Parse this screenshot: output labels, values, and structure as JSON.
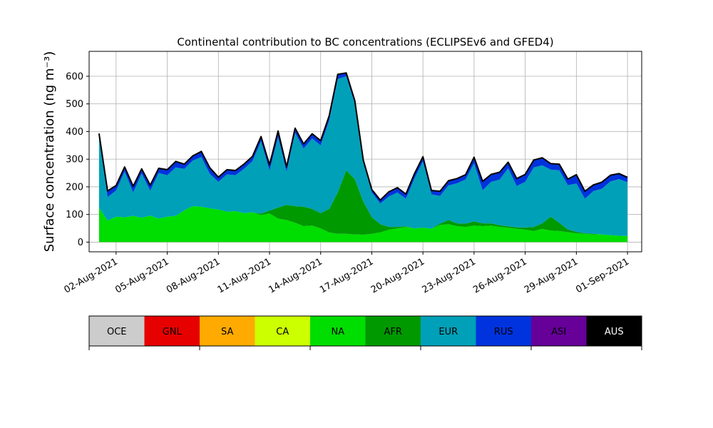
{
  "chart_data": {
    "type": "area",
    "title": "Continental contribution to BC concentrations (ECLIPSEv6 and GFED4)",
    "ylabel": "Surface concentration (ng m⁻³)",
    "xlabel": "",
    "ylim": [
      -35,
      690
    ],
    "yticks": [
      0,
      100,
      200,
      300,
      400,
      500,
      600
    ],
    "xlim": [
      "2021-07-31T10:00",
      "2021-09-01T20:00"
    ],
    "xticks": [
      "02-Aug-2021",
      "05-Aug-2021",
      "08-Aug-2021",
      "11-Aug-2021",
      "14-Aug-2021",
      "17-Aug-2021",
      "20-Aug-2021",
      "23-Aug-2021",
      "26-Aug-2021",
      "29-Aug-2021",
      "01-Sep-2021"
    ],
    "xtick_dates": [
      "2021-08-02",
      "2021-08-05",
      "2021-08-08",
      "2021-08-11",
      "2021-08-14",
      "2021-08-17",
      "2021-08-20",
      "2021-08-23",
      "2021-08-26",
      "2021-08-29",
      "2021-09-01"
    ],
    "grid": true,
    "stacked": true,
    "legend": {
      "placement": "bottom colorbar",
      "labels": [
        "OCE",
        "GNL",
        "SA",
        "CA",
        "NA",
        "AFR",
        "EUR",
        "RUS",
        "ASI",
        "AUS"
      ],
      "colors": [
        "#cccccc",
        "#e60000",
        "#ffaa00",
        "#ccff00",
        "#00dd00",
        "#009900",
        "#00a0b8",
        "#0033dd",
        "#660099",
        "#000000"
      ],
      "text_colors": [
        "#000000",
        "#000000",
        "#000000",
        "#000000",
        "#000000",
        "#000000",
        "#000000",
        "#000000",
        "#000000",
        "#ffffff"
      ]
    },
    "x": [
      "2021-08-01T00:00",
      "2021-08-01T12:00",
      "2021-08-02T00:00",
      "2021-08-02T12:00",
      "2021-08-03T00:00",
      "2021-08-03T12:00",
      "2021-08-04T00:00",
      "2021-08-04T12:00",
      "2021-08-05T00:00",
      "2021-08-05T12:00",
      "2021-08-06T00:00",
      "2021-08-06T12:00",
      "2021-08-07T00:00",
      "2021-08-07T12:00",
      "2021-08-08T00:00",
      "2021-08-08T12:00",
      "2021-08-09T00:00",
      "2021-08-09T12:00",
      "2021-08-10T00:00",
      "2021-08-10T12:00",
      "2021-08-11T00:00",
      "2021-08-11T12:00",
      "2021-08-12T00:00",
      "2021-08-12T12:00",
      "2021-08-13T00:00",
      "2021-08-13T12:00",
      "2021-08-14T00:00",
      "2021-08-14T12:00",
      "2021-08-15T00:00",
      "2021-08-15T12:00",
      "2021-08-16T00:00",
      "2021-08-16T12:00",
      "2021-08-17T00:00",
      "2021-08-17T12:00",
      "2021-08-18T00:00",
      "2021-08-18T12:00",
      "2021-08-19T00:00",
      "2021-08-19T12:00",
      "2021-08-20T00:00",
      "2021-08-20T12:00",
      "2021-08-21T00:00",
      "2021-08-21T12:00",
      "2021-08-22T00:00",
      "2021-08-22T12:00",
      "2021-08-23T00:00",
      "2021-08-23T12:00",
      "2021-08-24T00:00",
      "2021-08-24T12:00",
      "2021-08-25T00:00",
      "2021-08-25T12:00",
      "2021-08-26T00:00",
      "2021-08-26T12:00",
      "2021-08-27T00:00",
      "2021-08-27T12:00",
      "2021-08-28T00:00",
      "2021-08-28T12:00",
      "2021-08-29T00:00",
      "2021-08-29T12:00",
      "2021-08-30T00:00",
      "2021-08-30T12:00",
      "2021-08-31T00:00",
      "2021-08-31T12:00",
      "2021-09-01T00:00"
    ],
    "series": [
      {
        "name": "OCE",
        "values": [
          0,
          0,
          0,
          0,
          0,
          0,
          0,
          0,
          0,
          0,
          0,
          0,
          0,
          0,
          0,
          0,
          0,
          0,
          0,
          0,
          0,
          0,
          0,
          0,
          0,
          0,
          0,
          0,
          0,
          0,
          0,
          0,
          0,
          0,
          0,
          0,
          0,
          0,
          0,
          0,
          0,
          0,
          0,
          0,
          0,
          0,
          0,
          0,
          0,
          0,
          0,
          0,
          0,
          0,
          0,
          0,
          0,
          0,
          0,
          0,
          0,
          0,
          0
        ]
      },
      {
        "name": "GNL",
        "values": [
          0,
          0,
          0,
          0,
          0,
          0,
          0,
          0,
          0,
          0,
          0,
          0,
          0,
          0,
          0,
          0,
          0,
          0,
          0,
          0,
          0,
          0,
          0,
          0,
          0,
          0,
          0,
          0,
          0,
          0,
          0,
          0,
          0,
          0,
          0,
          0,
          0,
          0,
          0,
          0,
          0,
          0,
          0,
          0,
          0,
          0,
          0,
          0,
          0,
          0,
          0,
          0,
          0,
          0,
          0,
          0,
          0,
          0,
          0,
          0,
          0,
          0,
          0
        ]
      },
      {
        "name": "SA",
        "values": [
          0,
          0,
          0,
          0,
          0,
          0,
          0,
          0,
          0,
          0,
          0,
          0,
          0,
          0,
          0,
          0,
          0,
          0,
          0,
          0,
          0,
          0,
          0,
          0,
          0,
          0,
          0,
          0,
          0,
          0,
          0,
          0,
          0,
          0,
          0,
          0,
          0,
          0,
          0,
          0,
          0,
          0,
          0,
          0,
          0,
          0,
          0,
          0,
          0,
          0,
          0,
          0,
          0,
          0,
          0,
          0,
          0,
          0,
          0,
          0,
          0,
          0,
          0
        ]
      },
      {
        "name": "CA",
        "values": [
          0,
          0,
          0,
          0,
          0,
          0,
          0,
          0,
          0,
          0,
          0,
          0,
          0,
          0,
          0,
          0,
          0,
          0,
          0,
          0,
          0,
          0,
          0,
          0,
          0,
          0,
          0,
          0,
          0,
          0,
          0,
          0,
          0,
          0,
          0,
          0,
          0,
          0,
          0,
          0,
          0,
          0,
          0,
          0,
          0,
          0,
          0,
          0,
          0,
          0,
          0,
          0,
          0,
          0,
          0,
          0,
          0,
          0,
          0,
          0,
          0,
          0,
          0
        ]
      },
      {
        "name": "NA",
        "values": [
          125,
          78,
          92,
          90,
          95,
          88,
          96,
          85,
          92,
          95,
          115,
          130,
          128,
          122,
          118,
          110,
          112,
          105,
          108,
          98,
          104,
          85,
          80,
          70,
          58,
          60,
          50,
          35,
          30,
          30,
          28,
          27,
          30,
          35,
          45,
          50,
          55,
          50,
          52,
          48,
          62,
          65,
          58,
          55,
          60,
          58,
          60,
          55,
          52,
          48,
          45,
          40,
          48,
          42,
          40,
          36,
          32,
          30,
          28,
          28,
          25,
          23,
          22
        ]
      },
      {
        "name": "AFR",
        "values": [
          0,
          0,
          0,
          0,
          0,
          0,
          0,
          0,
          0,
          0,
          0,
          0,
          0,
          0,
          0,
          0,
          0,
          0,
          0,
          5,
          10,
          40,
          55,
          60,
          70,
          60,
          55,
          85,
          150,
          230,
          200,
          120,
          60,
          30,
          10,
          5,
          2,
          0,
          0,
          0,
          5,
          15,
          10,
          12,
          15,
          10,
          8,
          6,
          5,
          5,
          8,
          15,
          20,
          50,
          30,
          10,
          5,
          2,
          2,
          0,
          0,
          0,
          0
        ]
      },
      {
        "name": "EUR",
        "values": [
          255,
          85,
          95,
          165,
          85,
          160,
          90,
          165,
          150,
          175,
          150,
          165,
          180,
          125,
          100,
          135,
          130,
          160,
          185,
          262,
          145,
          255,
          120,
          265,
          210,
          255,
          245,
          320,
          410,
          340,
          272,
          140,
          90,
          75,
          110,
          125,
          100,
          180,
          240,
          125,
          100,
          125,
          145,
          160,
          210,
          120,
          150,
          165,
          210,
          150,
          165,
          215,
          210,
          170,
          190,
          160,
          175,
          125,
          155,
          165,
          195,
          205,
          195
        ]
      },
      {
        "name": "RUS",
        "values": [
          10,
          20,
          15,
          15,
          20,
          15,
          18,
          15,
          18,
          20,
          15,
          15,
          18,
          20,
          15,
          15,
          15,
          15,
          15,
          15,
          18,
          20,
          15,
          15,
          15,
          15,
          15,
          15,
          15,
          10,
          10,
          8,
          8,
          10,
          15,
          15,
          15,
          15,
          15,
          12,
          15,
          15,
          15,
          15,
          20,
          30,
          25,
          25,
          20,
          25,
          25,
          25,
          25,
          20,
          20,
          20,
          30,
          25,
          20,
          22,
          20,
          18,
          15
        ]
      },
      {
        "name": "ASI",
        "values": [
          0,
          0,
          0,
          0,
          0,
          0,
          0,
          0,
          0,
          0,
          0,
          0,
          0,
          0,
          0,
          0,
          0,
          0,
          0,
          0,
          0,
          0,
          0,
          0,
          0,
          0,
          0,
          0,
          0,
          0,
          0,
          0,
          0,
          0,
          0,
          0,
          0,
          0,
          0,
          0,
          0,
          0,
          0,
          0,
          0,
          0,
          0,
          0,
          0,
          0,
          0,
          0,
          0,
          0,
          0,
          0,
          0,
          0,
          0,
          0,
          0,
          0,
          0
        ]
      },
      {
        "name": "AUS",
        "values": [
          3,
          2,
          3,
          2,
          2,
          2,
          2,
          2,
          2,
          2,
          2,
          2,
          2,
          2,
          2,
          2,
          2,
          2,
          2,
          2,
          2,
          2,
          2,
          2,
          2,
          2,
          2,
          2,
          2,
          2,
          2,
          2,
          2,
          2,
          2,
          2,
          2,
          2,
          2,
          2,
          2,
          2,
          2,
          2,
          2,
          2,
          2,
          2,
          2,
          2,
          2,
          2,
          2,
          2,
          2,
          2,
          2,
          2,
          2,
          2,
          2,
          2,
          2
        ]
      }
    ]
  }
}
